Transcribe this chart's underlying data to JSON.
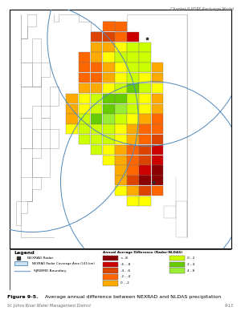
{
  "header_text": "Chapter 9 HSPF Recharge Model",
  "footer_text": "St. Johns River Water Management District",
  "footer_right": "9-13",
  "bg_color": "#ffffff",
  "map_frame_color": "#000000",
  "C": {
    "DR": "#8b0000",
    "R": "#cc0000",
    "OR": "#dd4400",
    "O": "#ff6600",
    "YO": "#ffaa00",
    "Y": "#ffff00",
    "YG": "#ccff00",
    "G": "#66cc00",
    "LG": "#99ee33"
  },
  "nexrad_color": "#4d88bb",
  "county_color": "#aaaaaa",
  "grid_edge_color": "#777777",
  "legend_items_left": [
    {
      "label": "< -8",
      "color": "#8b0000"
    },
    {
      "label": "-6 - -8",
      "color": "#cc0000"
    },
    {
      "label": "-4 - -6",
      "color": "#dd4400"
    },
    {
      "label": "-2 - -4",
      "color": "#ff6600"
    },
    {
      "label": "0 - -2",
      "color": "#ffaa00"
    }
  ],
  "legend_items_right": [
    {
      "label": "0 - 2",
      "color": "#ccff00"
    },
    {
      "label": "2 - 4",
      "color": "#66cc00"
    },
    {
      "label": "4 - 8",
      "color": "#99ee33"
    }
  ],
  "legend_title": "Annual Average Difference (Radar-NLDAS)"
}
